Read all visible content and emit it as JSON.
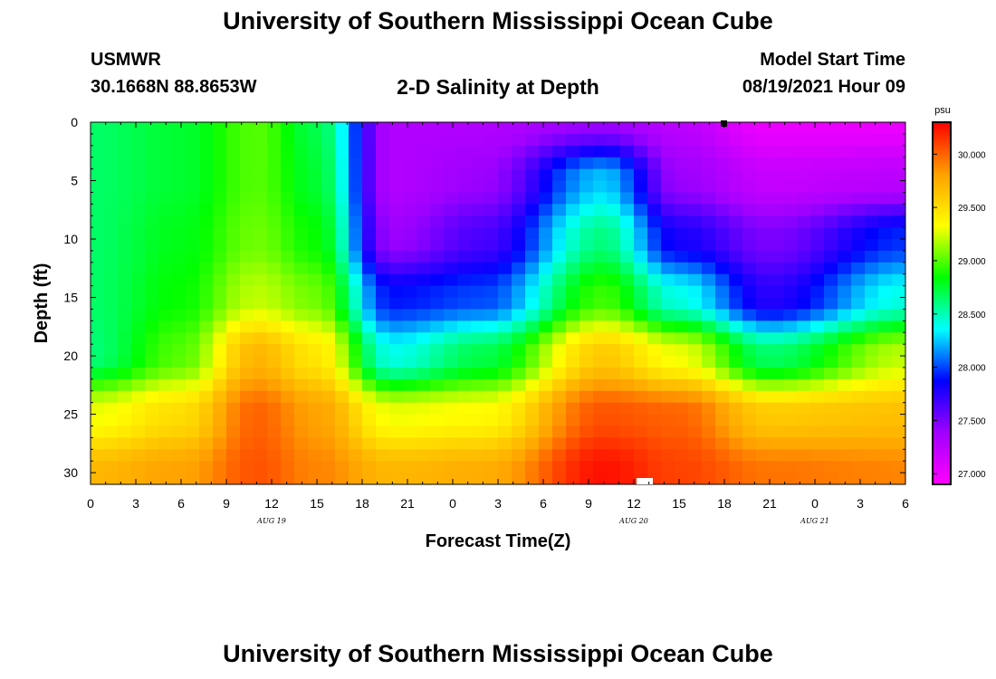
{
  "header": {
    "title": "University of Southern Mississippi Ocean Cube",
    "station": "USMWR",
    "coordinates": "30.1668N  88.8653W",
    "subtitle": "2-D Salinity at Depth",
    "model_start_label": "Model Start Time",
    "model_start_value": "08/19/2021 Hour 09"
  },
  "footer": {
    "title": "University of Southern Mississippi Ocean Cube"
  },
  "chart_data": {
    "type": "heatmap",
    "title": "2-D Salinity at Depth",
    "xlabel": "Forecast Time(Z)",
    "ylabel": "Depth (ft)",
    "x_hours_range": [
      0,
      54
    ],
    "xticks": [
      "0",
      "3",
      "6",
      "9",
      "12",
      "15",
      "18",
      "21",
      "0",
      "3",
      "6",
      "9",
      "12",
      "15",
      "18",
      "21",
      "0",
      "3",
      "6"
    ],
    "date_labels": [
      {
        "label": "AUG 19",
        "hour": 12
      },
      {
        "label": "AUG 20",
        "hour": 36
      },
      {
        "label": "AUG 21",
        "hour": 48
      }
    ],
    "ylim": [
      0,
      31
    ],
    "yticks": [
      "0",
      "5",
      "10",
      "15",
      "20",
      "25",
      "30"
    ],
    "colorbar": {
      "unit": "psu",
      "range": [
        26.9,
        30.3
      ],
      "ticks": [
        "27.000",
        "27.500",
        "28.000",
        "28.500",
        "29.000",
        "29.500",
        "30.000"
      ],
      "colors": [
        "#ff00ff",
        "#a000ff",
        "#0000ff",
        "#00ffff",
        "#00ff00",
        "#ffff00",
        "#ffa000",
        "#ff0000"
      ]
    },
    "salinity_profiles": {
      "description": "Approximate salinity (psu) at depth (ft) for selected forecast hours",
      "depths_ft": [
        0,
        5,
        10,
        15,
        20,
        25,
        30
      ],
      "columns": [
        {
          "hour": 0,
          "values": [
            28.65,
            28.65,
            28.65,
            28.65,
            28.62,
            29.3,
            29.7
          ]
        },
        {
          "hour": 6,
          "values": [
            28.75,
            28.75,
            28.8,
            28.85,
            29.0,
            29.5,
            29.8
          ]
        },
        {
          "hour": 11,
          "values": [
            29.0,
            29.0,
            29.05,
            29.2,
            29.7,
            30.0,
            30.05
          ]
        },
        {
          "hour": 15,
          "values": [
            28.7,
            28.75,
            28.85,
            29.05,
            29.45,
            29.8,
            29.9
          ]
        },
        {
          "hour": 20,
          "values": [
            27.3,
            27.3,
            27.4,
            27.9,
            28.4,
            29.3,
            29.7
          ]
        },
        {
          "hour": 26,
          "values": [
            27.3,
            27.4,
            27.65,
            28.0,
            28.7,
            29.35,
            29.75
          ]
        },
        {
          "hour": 34,
          "values": [
            27.4,
            28.25,
            28.6,
            28.95,
            29.6,
            30.05,
            30.25
          ]
        },
        {
          "hour": 39,
          "values": [
            27.25,
            27.4,
            27.8,
            28.4,
            29.3,
            30.0,
            30.1
          ]
        },
        {
          "hour": 45,
          "values": [
            27.0,
            27.2,
            27.5,
            27.75,
            28.65,
            29.6,
            29.95
          ]
        },
        {
          "hour": 54,
          "values": [
            27.0,
            27.25,
            27.95,
            28.4,
            29.2,
            29.65,
            29.9
          ]
        }
      ]
    }
  }
}
